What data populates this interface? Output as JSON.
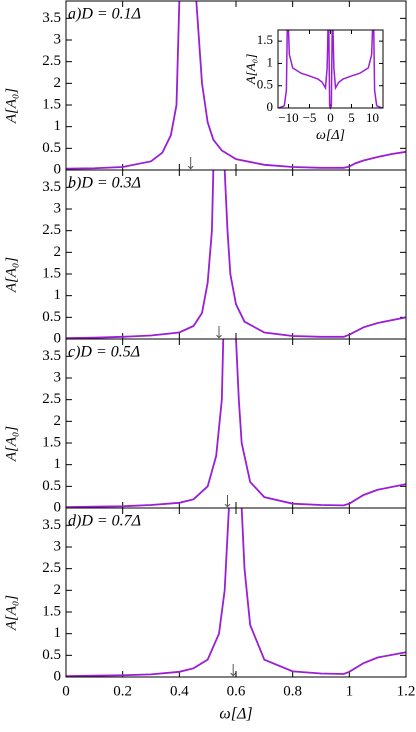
{
  "chart_data": [
    {
      "type": "line",
      "title": "a)D = 0.1Δ",
      "ylabel": "A[A₀]",
      "color": "#9a1ed6",
      "x": [
        0,
        0.1,
        0.2,
        0.3,
        0.34,
        0.37,
        0.39,
        0.4,
        0.42,
        0.46,
        0.48,
        0.5,
        0.52,
        0.55,
        0.6,
        0.7,
        0.8,
        0.9,
        0.98,
        1.0,
        1.02,
        1.05,
        1.1,
        1.15,
        1.2
      ],
      "values": [
        0.03,
        0.04,
        0.07,
        0.2,
        0.4,
        0.8,
        1.5,
        3.9,
        null,
        3.9,
        2.0,
        1.1,
        0.7,
        0.45,
        0.25,
        0.12,
        0.07,
        0.05,
        0.05,
        0.08,
        0.15,
        0.22,
        0.3,
        0.37,
        0.42
      ],
      "arrow_x": 0.44,
      "xlim": [
        0,
        1.2
      ],
      "ylim": [
        0,
        3.9
      ],
      "xticks": [
        0,
        0.2,
        0.4,
        0.6,
        0.8,
        1,
        1.2
      ],
      "yticks": [
        0,
        0.5,
        1,
        1.5,
        2,
        2.5,
        3,
        3.5
      ]
    },
    {
      "type": "line",
      "title": "b)D = 0.3Δ",
      "ylabel": "A[A₀]",
      "color": "#9a1ed6",
      "x": [
        0,
        0.1,
        0.2,
        0.3,
        0.4,
        0.45,
        0.48,
        0.5,
        0.515,
        0.52,
        0.54,
        0.56,
        0.57,
        0.58,
        0.6,
        0.63,
        0.7,
        0.8,
        0.9,
        0.98,
        1.0,
        1.05,
        1.1,
        1.2
      ],
      "values": [
        0.02,
        0.03,
        0.05,
        0.08,
        0.15,
        0.3,
        0.6,
        1.3,
        2.5,
        3.9,
        null,
        3.9,
        2.5,
        1.5,
        0.8,
        0.4,
        0.15,
        0.07,
        0.05,
        0.05,
        0.1,
        0.27,
        0.37,
        0.5
      ],
      "arrow_x": 0.54,
      "xlim": [
        0,
        1.2
      ],
      "ylim": [
        0,
        3.9
      ],
      "xticks": [
        0,
        0.2,
        0.4,
        0.6,
        0.8,
        1,
        1.2
      ],
      "yticks": [
        0,
        0.5,
        1,
        1.5,
        2,
        2.5,
        3,
        3.5
      ]
    },
    {
      "type": "line",
      "title": "c)D = 0.5Δ",
      "ylabel": "A[A₀]",
      "color": "#9a1ed6",
      "x": [
        0,
        0.1,
        0.2,
        0.3,
        0.4,
        0.45,
        0.5,
        0.53,
        0.55,
        0.555,
        0.57,
        0.6,
        0.61,
        0.62,
        0.65,
        0.7,
        0.8,
        0.9,
        0.98,
        1.0,
        1.05,
        1.1,
        1.2
      ],
      "values": [
        0.02,
        0.03,
        0.04,
        0.07,
        0.12,
        0.2,
        0.5,
        1.2,
        2.5,
        3.9,
        null,
        3.9,
        2.5,
        1.5,
        0.6,
        0.25,
        0.1,
        0.07,
        0.06,
        0.1,
        0.3,
        0.42,
        0.55
      ],
      "arrow_x": 0.57,
      "xlim": [
        0,
        1.2
      ],
      "ylim": [
        0,
        3.9
      ],
      "xticks": [
        0,
        0.2,
        0.4,
        0.6,
        0.8,
        1,
        1.2
      ],
      "yticks": [
        0,
        0.5,
        1,
        1.5,
        2,
        2.5,
        3,
        3.5
      ]
    },
    {
      "type": "line",
      "title": "d)D = 0.7Δ",
      "ylabel": "A[A₀]",
      "xlabel": "ω[Δ]",
      "color": "#9a1ed6",
      "x": [
        0,
        0.1,
        0.2,
        0.3,
        0.4,
        0.45,
        0.5,
        0.54,
        0.56,
        0.575,
        0.6,
        0.62,
        0.63,
        0.65,
        0.7,
        0.8,
        0.9,
        0.98,
        1.0,
        1.05,
        1.1,
        1.2
      ],
      "values": [
        0.02,
        0.03,
        0.04,
        0.06,
        0.12,
        0.2,
        0.4,
        1.0,
        2.0,
        3.9,
        null,
        3.9,
        2.5,
        1.2,
        0.4,
        0.13,
        0.08,
        0.07,
        0.12,
        0.32,
        0.45,
        0.57
      ],
      "arrow_x": 0.59,
      "xlim": [
        0,
        1.2
      ],
      "ylim": [
        0,
        3.9
      ],
      "xticks": [
        0,
        0.2,
        0.4,
        0.6,
        0.8,
        1,
        1.2
      ],
      "yticks": [
        0,
        0.5,
        1,
        1.5,
        2,
        2.5,
        3,
        3.5
      ]
    },
    {
      "type": "line",
      "ylabel": "A[A₀]",
      "xlabel": "ω[Δ]",
      "color": "#9a1ed6",
      "x": [
        -12.3,
        -11,
        -10.5,
        -10.3,
        -10.1,
        -10,
        -9.8,
        -9,
        -7,
        -5,
        -3,
        -2,
        -1.2,
        -0.8,
        -0.6,
        -0.5,
        -0.4,
        -0.2,
        0,
        0.2,
        0.4,
        0.5,
        0.6,
        0.8,
        1.2,
        2,
        3,
        5,
        7,
        9,
        9.8,
        10,
        10.1,
        10.3,
        10.5,
        11,
        12.3
      ],
      "values": [
        0,
        0.05,
        0.4,
        1.75,
        null,
        1.75,
        1.2,
        0.9,
        0.78,
        0.72,
        0.65,
        0.58,
        0.45,
        0.9,
        1.75,
        null,
        1.75,
        0.05,
        0,
        0.05,
        1.75,
        null,
        1.75,
        0.9,
        0.45,
        0.58,
        0.65,
        0.72,
        0.78,
        0.9,
        1.2,
        1.75,
        null,
        1.75,
        0.4,
        0.05,
        0
      ],
      "xlim": [
        -12.5,
        12.5
      ],
      "ylim": [
        0,
        1.75
      ],
      "xticks": [
        {
          "value": -10,
          "label": "−10"
        },
        {
          "value": -5,
          "label": "−5"
        },
        0,
        5,
        10
      ],
      "yticks": [
        0,
        0.5,
        1,
        1.5
      ]
    }
  ]
}
